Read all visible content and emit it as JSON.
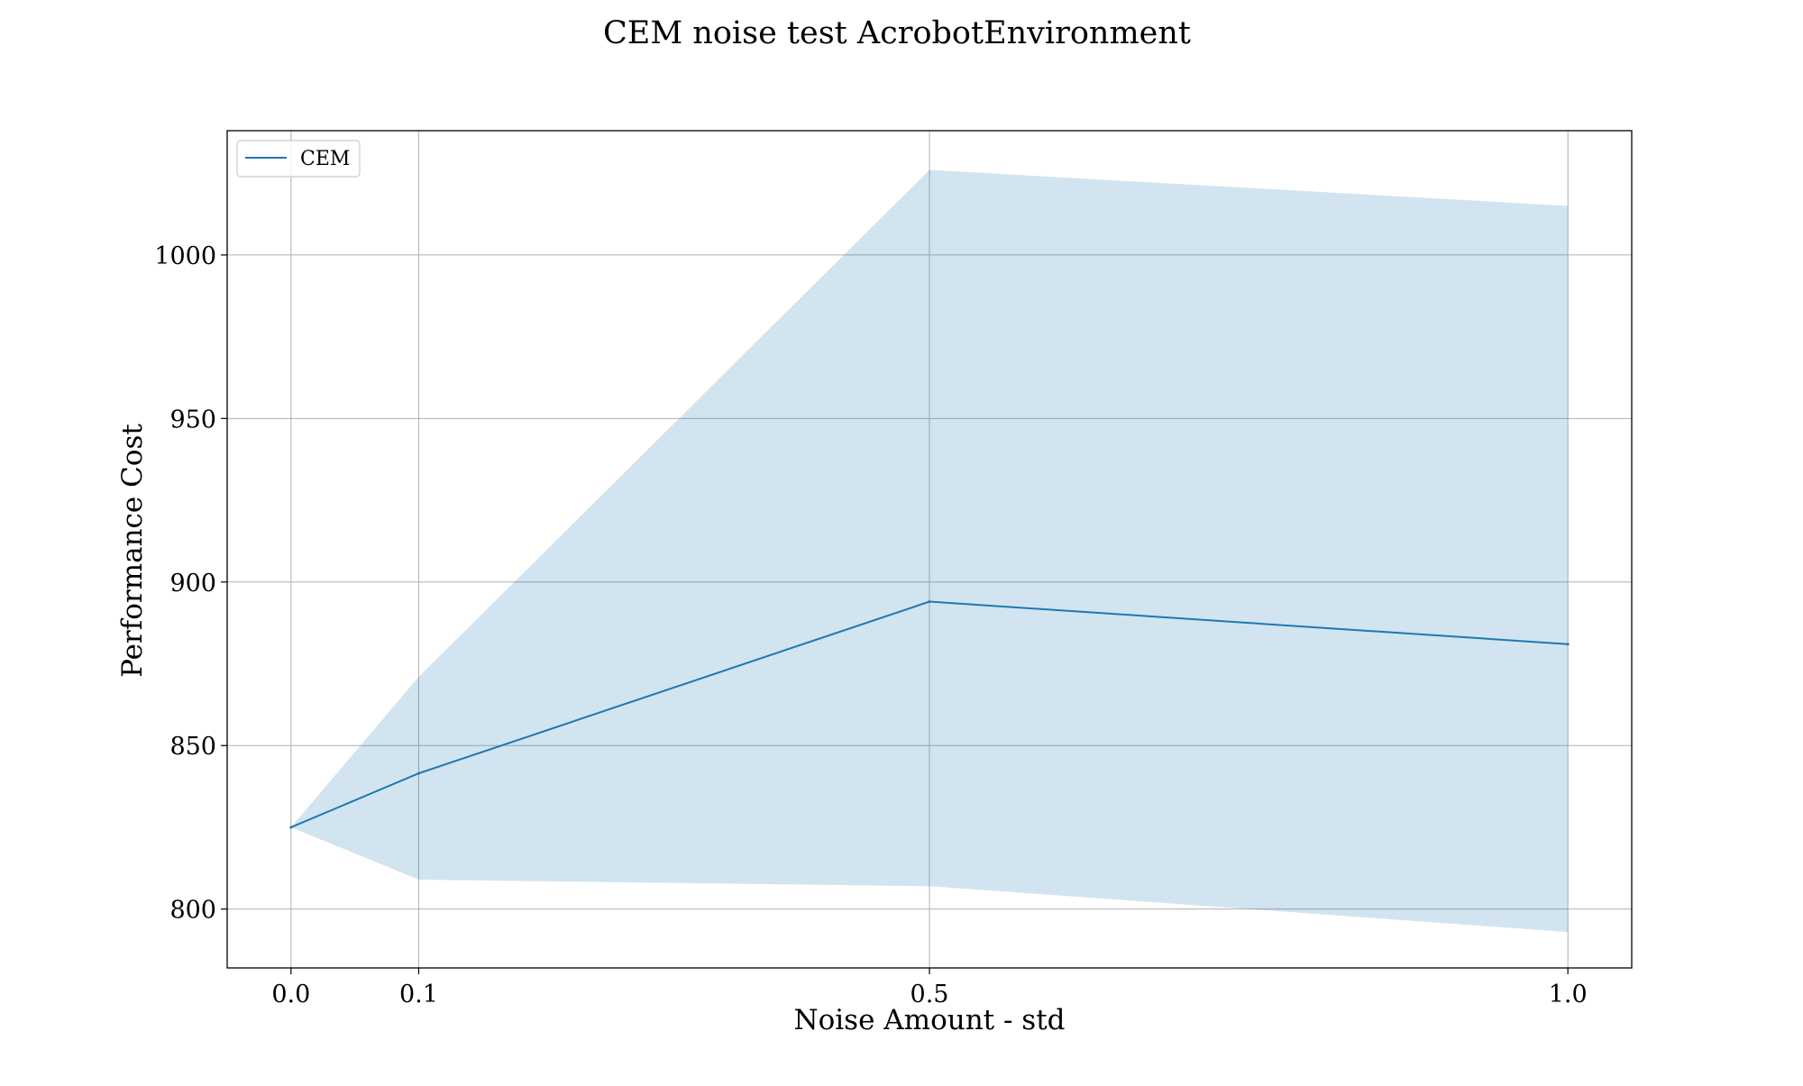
{
  "chart_data": {
    "type": "line",
    "title": "CEM noise test AcrobotEnvironment",
    "xlabel": "Noise Amount - std",
    "ylabel": "Performance Cost",
    "x": [
      0.0,
      0.1,
      0.5,
      1.0
    ],
    "x_tick_labels": [
      "0.0",
      "0.1",
      "0.5",
      "1.0"
    ],
    "y_ticks": [
      800,
      850,
      900,
      950,
      1000
    ],
    "y_tick_labels": [
      "800",
      "850",
      "900",
      "950",
      "1000"
    ],
    "xlim": [
      -0.05,
      1.05
    ],
    "ylim": [
      782,
      1038
    ],
    "grid": true,
    "legend_position": "upper-left",
    "series": [
      {
        "name": "CEM",
        "color": "#1f77b4",
        "band_color": "#1f77b4",
        "values": [
          825,
          841.5,
          894,
          881
        ],
        "upper": [
          825,
          871,
          1026,
          1015
        ],
        "lower": [
          825,
          809,
          807,
          793
        ]
      }
    ]
  }
}
